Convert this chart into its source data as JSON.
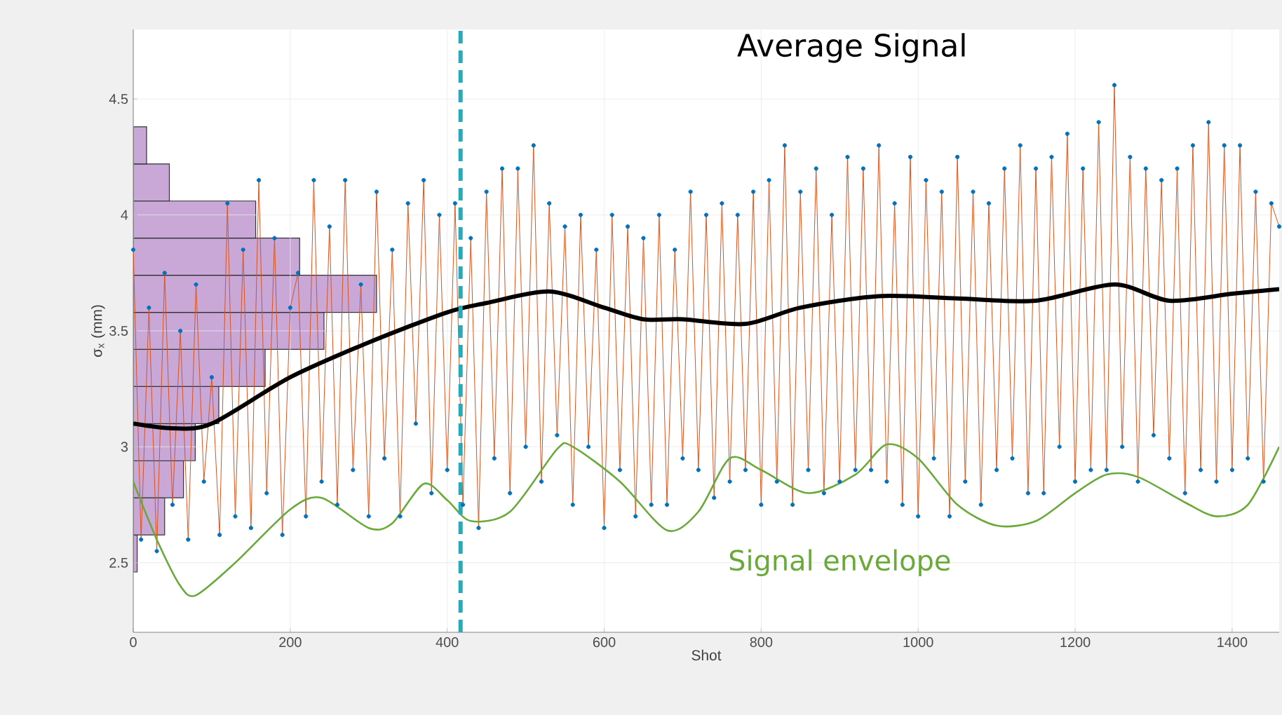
{
  "chart_data": [
    {
      "type": "histogram",
      "orientation": "horizontal",
      "color": "#c9a8d8",
      "xlim": [
        0,
        1460
      ],
      "ylim": [
        2.2,
        4.8
      ],
      "tick_labels": false,
      "bins": [
        2.46,
        2.62,
        2.78,
        2.94,
        3.1,
        3.26,
        3.42,
        3.58,
        3.74,
        3.9,
        4.06,
        4.22,
        4.38
      ],
      "values": [
        5,
        40,
        64,
        79,
        109,
        168,
        243,
        310,
        212,
        156,
        46,
        17
      ]
    },
    {
      "type": "line",
      "xlabel": "Shot",
      "ylabel": "σ$_{x}$ (mm)",
      "xlim": [
        0,
        1460
      ],
      "ylim": [
        2.2,
        4.8
      ],
      "xticks": [
        0,
        200,
        400,
        600,
        800,
        1000,
        1200,
        1400
      ],
      "yticks": [
        2.5,
        3,
        3.5,
        4,
        4.5
      ],
      "grid": true,
      "ref_lines": [
        {
          "axis": "x",
          "value": 417,
          "color": "#29aab8",
          "line_style": "dashed"
        }
      ],
      "series": [
        {
          "color": "#d95319",
          "marker": "circle",
          "x": [
            0,
            10,
            20,
            30,
            40,
            50,
            60,
            70,
            80,
            90,
            100,
            110,
            120,
            130,
            140,
            150,
            160,
            170,
            180,
            190,
            200,
            210,
            220,
            230,
            240,
            250,
            260,
            270,
            280,
            290,
            300,
            310,
            320,
            330,
            340,
            350,
            360,
            370,
            380,
            390,
            400,
            410,
            420,
            430,
            440,
            450,
            460,
            470,
            480,
            490,
            500,
            510,
            520,
            530,
            540,
            550,
            560,
            570,
            580,
            590,
            600,
            610,
            620,
            630,
            640,
            650,
            660,
            670,
            680,
            690,
            700,
            710,
            720,
            730,
            740,
            750,
            760,
            770,
            780,
            790,
            800,
            810,
            820,
            830,
            840,
            850,
            860,
            870,
            880,
            890,
            900,
            910,
            920,
            930,
            940,
            950,
            960,
            970,
            980,
            990,
            1000,
            1010,
            1020,
            1030,
            1040,
            1050,
            1060,
            1070,
            1080,
            1090,
            1100,
            1110,
            1120,
            1130,
            1140,
            1150,
            1160,
            1170,
            1180,
            1190,
            1200,
            1210,
            1220,
            1230,
            1240,
            1250,
            1260,
            1270,
            1280,
            1290,
            1300,
            1310,
            1320,
            1330,
            1340,
            1350,
            1360,
            1370,
            1380,
            1390,
            1400,
            1410,
            1420,
            1430,
            1440,
            1450,
            1460
          ],
          "values": [
            3.85,
            2.6,
            3.6,
            2.55,
            3.75,
            2.75,
            3.5,
            2.6,
            3.7,
            2.85,
            3.3,
            2.62,
            4.05,
            2.7,
            3.85,
            2.65,
            4.15,
            2.8,
            3.9,
            2.62,
            3.6,
            3.75,
            2.7,
            4.15,
            2.85,
            3.95,
            2.75,
            4.15,
            2.9,
            3.7,
            2.7,
            4.1,
            2.95,
            3.85,
            2.7,
            4.05,
            3.1,
            4.15,
            2.8,
            4.0,
            2.9,
            4.05,
            2.75,
            3.9,
            2.65,
            4.1,
            2.95,
            4.2,
            2.8,
            4.2,
            3.0,
            4.3,
            2.85,
            4.05,
            3.05,
            3.95,
            2.75,
            4.0,
            3.0,
            3.85,
            2.65,
            4.0,
            2.9,
            3.95,
            2.7,
            3.9,
            2.75,
            4.0,
            2.75,
            3.85,
            2.95,
            4.1,
            2.9,
            4.0,
            2.78,
            4.05,
            2.85,
            4.0,
            2.9,
            4.1,
            2.75,
            4.15,
            2.85,
            4.3,
            2.75,
            4.1,
            2.9,
            4.2,
            2.8,
            4.0,
            2.85,
            4.25,
            2.9,
            4.2,
            2.9,
            4.3,
            2.85,
            4.05,
            2.75,
            4.25,
            2.7,
            4.15,
            2.95,
            4.1,
            2.7,
            4.25,
            2.85,
            4.1,
            2.75,
            4.05,
            2.9,
            4.2,
            2.95,
            4.3,
            2.8,
            4.2,
            2.8,
            4.25,
            3.0,
            4.35,
            2.85,
            4.2,
            2.9,
            4.4,
            2.9,
            4.56,
            3.0,
            4.25,
            2.85,
            4.2,
            3.05,
            4.15,
            2.95,
            4.2,
            2.8,
            4.3,
            2.9,
            4.4,
            2.85,
            4.3,
            2.9,
            4.3,
            2.95,
            4.1,
            2.85,
            4.05,
            3.95
          ]
        },
        {
          "name": "Average Signal",
          "color": "#000000",
          "x": [
            0,
            50,
            100,
            200,
            300,
            400,
            450,
            530,
            600,
            650,
            700,
            780,
            850,
            950,
            1050,
            1150,
            1250,
            1320,
            1400,
            1460
          ],
          "values": [
            3.1,
            3.08,
            3.1,
            3.3,
            3.45,
            3.58,
            3.62,
            3.67,
            3.6,
            3.55,
            3.55,
            3.53,
            3.6,
            3.65,
            3.64,
            3.63,
            3.7,
            3.63,
            3.66,
            3.68
          ]
        },
        {
          "name": "Signal envelope",
          "color": "#6aaa3a",
          "x": [
            0,
            30,
            60,
            80,
            130,
            200,
            240,
            300,
            330,
            370,
            400,
            430,
            480,
            540,
            560,
            620,
            680,
            720,
            760,
            800,
            860,
            920,
            960,
            1000,
            1050,
            1100,
            1150,
            1200,
            1240,
            1280,
            1340,
            1380,
            1420,
            1460
          ],
          "values": [
            2.85,
            2.6,
            2.4,
            2.36,
            2.5,
            2.73,
            2.78,
            2.65,
            2.67,
            2.84,
            2.77,
            2.68,
            2.72,
            2.99,
            3.0,
            2.85,
            2.64,
            2.72,
            2.95,
            2.9,
            2.8,
            2.88,
            3.01,
            2.95,
            2.75,
            2.66,
            2.68,
            2.8,
            2.88,
            2.87,
            2.76,
            2.7,
            2.75,
            3.0
          ]
        }
      ]
    }
  ]
}
